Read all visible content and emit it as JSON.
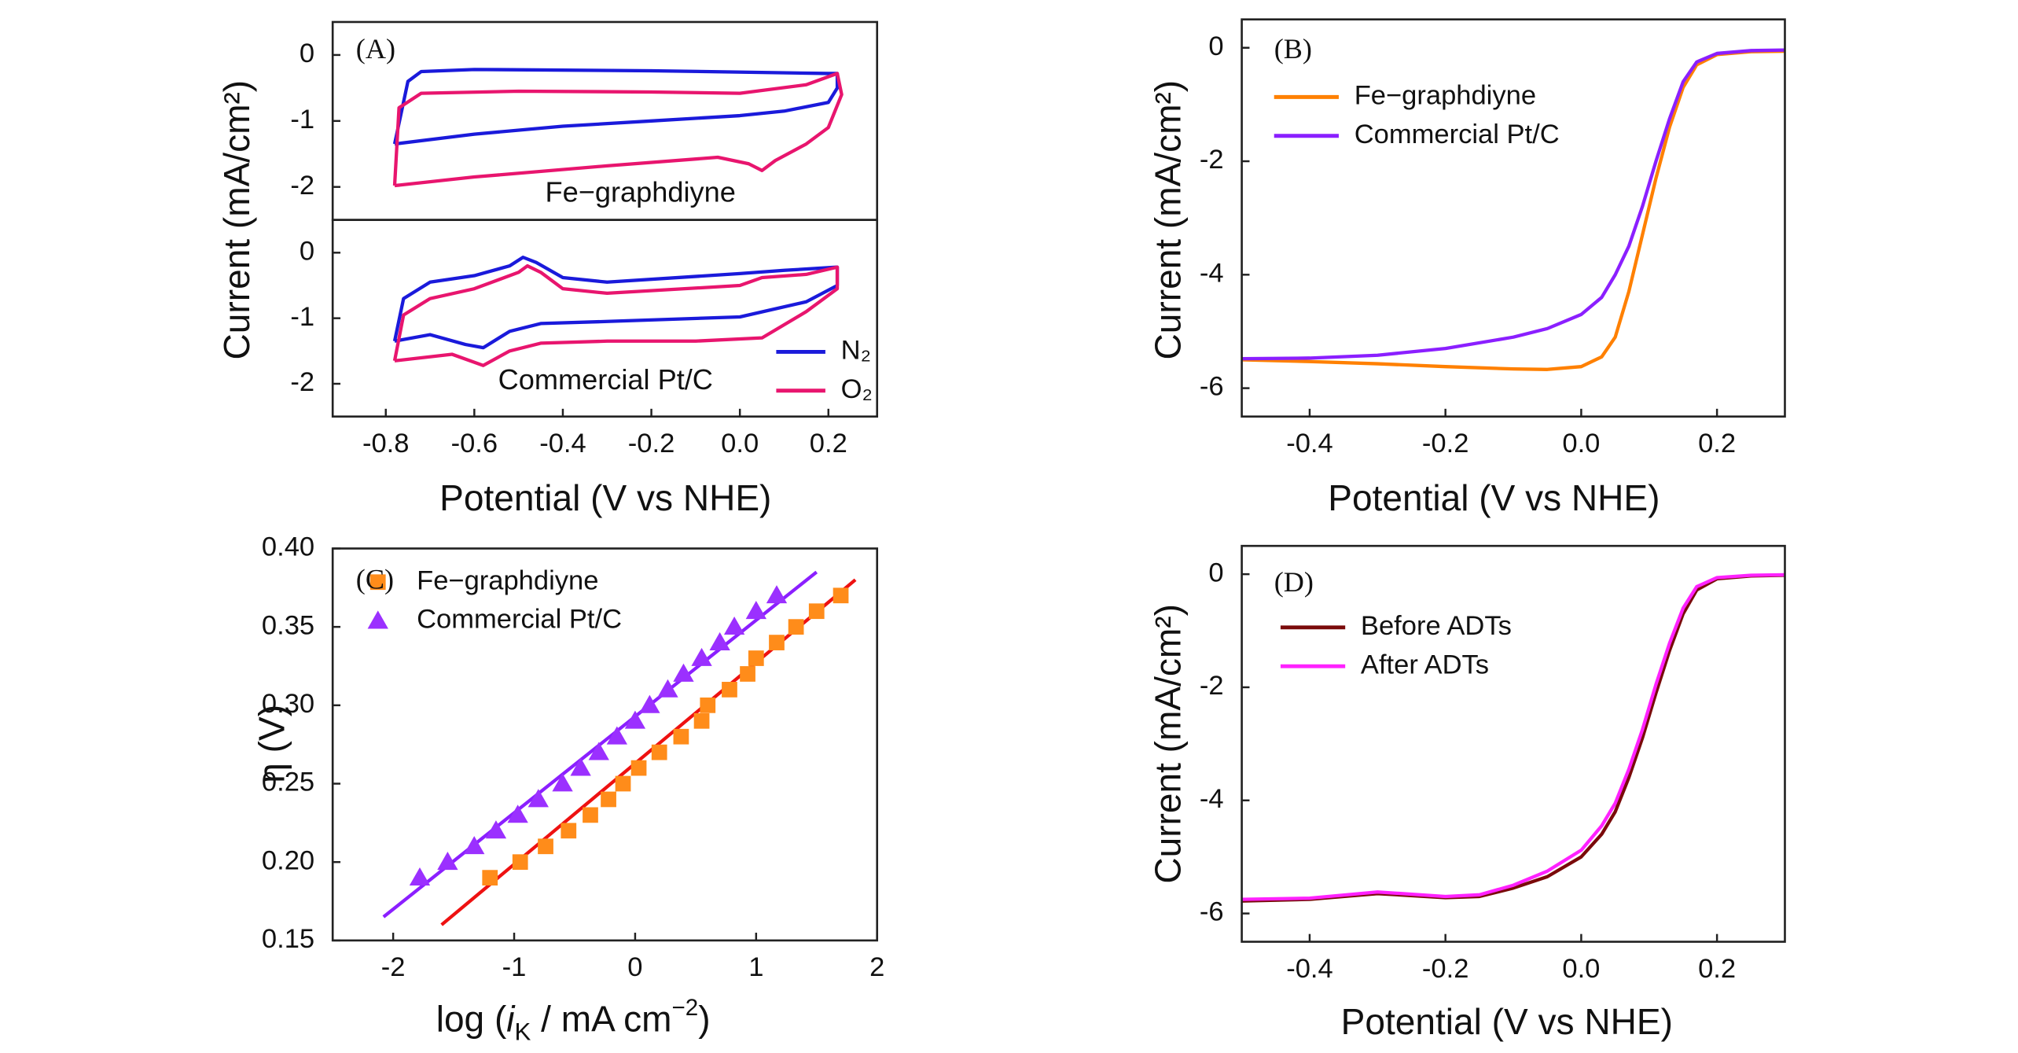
{
  "chart_data": [
    {
      "type": "line",
      "panel_label": "(A)",
      "annotation": "Fe−graphdiyne",
      "ylabel": "Current (mA/cm²)",
      "xlim": [
        -0.92,
        0.31
      ],
      "ylim": [
        -2.5,
        0.5
      ],
      "yticks": [
        0,
        -1,
        -2
      ],
      "series": [
        {
          "color": "#1a1adb",
          "x": [
            -0.78,
            -0.75,
            -0.72,
            -0.6,
            -0.2,
            0.2,
            0.22,
            0.22,
            0.2,
            0.1,
            0.0,
            -0.2,
            -0.4,
            -0.6,
            -0.78
          ],
          "values": [
            -1.35,
            -0.4,
            -0.25,
            -0.22,
            -0.24,
            -0.28,
            -0.28,
            -0.5,
            -0.72,
            -0.85,
            -0.92,
            -1.0,
            -1.08,
            -1.2,
            -1.35
          ]
        },
        {
          "color": "#e8156e",
          "x": [
            -0.78,
            -0.77,
            -0.72,
            -0.5,
            -0.2,
            0.0,
            0.15,
            0.22,
            0.23,
            0.2,
            0.15,
            0.08,
            0.05,
            0.02,
            -0.05,
            -0.3,
            -0.6,
            -0.78
          ],
          "values": [
            -1.98,
            -0.8,
            -0.58,
            -0.55,
            -0.56,
            -0.58,
            -0.45,
            -0.28,
            -0.6,
            -1.1,
            -1.35,
            -1.6,
            -1.75,
            -1.65,
            -1.55,
            -1.68,
            -1.85,
            -1.98
          ]
        }
      ]
    },
    {
      "type": "line",
      "annotation": "Commercial Pt/C",
      "xlabel": "Potential (V vs NHE)",
      "xlim": [
        -0.92,
        0.31
      ],
      "ylim": [
        -2.5,
        0.5
      ],
      "yticks": [
        0,
        -1,
        -2
      ],
      "xticks": [
        -0.8,
        -0.6,
        -0.4,
        -0.2,
        {
          "value": 0,
          "label": "0.0"
        },
        0.2
      ],
      "legend": "lower right",
      "series": [
        {
          "name": "N₂",
          "color": "#1a1adb",
          "x": [
            -0.78,
            -0.76,
            -0.7,
            -0.6,
            -0.52,
            -0.49,
            -0.46,
            -0.4,
            -0.3,
            0.0,
            0.1,
            0.22,
            0.22,
            0.15,
            0.0,
            -0.3,
            -0.45,
            -0.52,
            -0.58,
            -0.62,
            -0.7,
            -0.78
          ],
          "values": [
            -1.35,
            -0.7,
            -0.45,
            -0.35,
            -0.2,
            -0.07,
            -0.15,
            -0.38,
            -0.45,
            -0.32,
            -0.27,
            -0.22,
            -0.5,
            -0.75,
            -0.98,
            -1.05,
            -1.08,
            -1.2,
            -1.45,
            -1.4,
            -1.25,
            -1.35
          ]
        },
        {
          "name": "O₂",
          "color": "#e8156e",
          "x": [
            -0.78,
            -0.76,
            -0.7,
            -0.6,
            -0.5,
            -0.48,
            -0.45,
            -0.4,
            -0.3,
            0.0,
            0.05,
            0.15,
            0.22,
            0.22,
            0.15,
            0.05,
            -0.1,
            -0.3,
            -0.45,
            -0.52,
            -0.58,
            -0.65,
            -0.78
          ],
          "values": [
            -1.65,
            -0.95,
            -0.7,
            -0.55,
            -0.3,
            -0.2,
            -0.3,
            -0.55,
            -0.62,
            -0.5,
            -0.38,
            -0.33,
            -0.22,
            -0.55,
            -0.9,
            -1.3,
            -1.35,
            -1.35,
            -1.38,
            -1.5,
            -1.72,
            -1.55,
            -1.65
          ]
        }
      ]
    },
    {
      "type": "line",
      "panel_label": "(B)",
      "xlabel": "Potential (V vs NHE)",
      "ylabel": "Current (mA/cm²)",
      "xlim": [
        -0.5,
        0.3
      ],
      "ylim": [
        -6.5,
        0.5
      ],
      "yticks": [
        0,
        -2,
        -4,
        -6
      ],
      "xticks": [
        -0.4,
        -0.2,
        {
          "value": 0,
          "label": "0.0"
        },
        0.2
      ],
      "legend": "upper left",
      "x": [
        -0.5,
        -0.4,
        -0.3,
        -0.2,
        -0.1,
        -0.05,
        0.0,
        0.03,
        0.05,
        0.07,
        0.09,
        0.11,
        0.13,
        0.15,
        0.17,
        0.2,
        0.25,
        0.3
      ],
      "series": [
        {
          "name": "Fe−graphdiyne",
          "color": "#ff8000",
          "values": [
            -5.5,
            -5.53,
            -5.57,
            -5.62,
            -5.66,
            -5.67,
            -5.62,
            -5.45,
            -5.1,
            -4.3,
            -3.3,
            -2.3,
            -1.4,
            -0.7,
            -0.3,
            -0.12,
            -0.07,
            -0.06
          ]
        },
        {
          "name": "Commercial Pt/C",
          "color": "#8b1fff",
          "values": [
            -5.48,
            -5.47,
            -5.42,
            -5.3,
            -5.1,
            -4.95,
            -4.7,
            -4.4,
            -4.0,
            -3.5,
            -2.8,
            -2.0,
            -1.25,
            -0.6,
            -0.25,
            -0.1,
            -0.05,
            -0.04
          ]
        }
      ]
    },
    {
      "type": "scatter",
      "panel_label": "(C)",
      "xlabel_parts": [
        "log (",
        "i",
        "K",
        " / mA cm",
        "−2",
        ")"
      ],
      "ylabel": "η (V)",
      "xlim": [
        -2.5,
        2.0
      ],
      "ylim": [
        0.15,
        0.4
      ],
      "xticks": [
        -2,
        -1,
        0,
        1,
        2
      ],
      "yticks": [
        0.15,
        {
          "value": 0.2,
          "label": "0.20"
        },
        0.25,
        {
          "value": 0.3,
          "label": "0.30"
        },
        0.35,
        {
          "value": 0.4,
          "label": "0.40"
        }
      ],
      "legend": "upper left",
      "series": [
        {
          "name": "Fe−graphdiyne",
          "color": "#ff8c1a",
          "marker": "square",
          "x": [
            -1.2,
            -0.95,
            -0.74,
            -0.55,
            -0.37,
            -0.22,
            -0.1,
            0.03,
            0.2,
            0.38,
            0.55,
            0.6,
            0.78,
            0.93,
            1.0,
            1.17,
            1.33,
            1.5,
            1.7
          ],
          "values": [
            0.19,
            0.2,
            0.21,
            0.22,
            0.23,
            0.24,
            0.25,
            0.26,
            0.27,
            0.28,
            0.29,
            0.3,
            0.31,
            0.32,
            0.33,
            0.34,
            0.35,
            0.36,
            0.37
          ]
        },
        {
          "name": "Commercial Pt/C",
          "color": "#9b30ff",
          "marker": "triangle",
          "x": [
            -1.78,
            -1.55,
            -1.33,
            -1.15,
            -0.97,
            -0.8,
            -0.6,
            -0.45,
            -0.3,
            -0.15,
            0.0,
            0.12,
            0.27,
            0.4,
            0.55,
            0.7,
            0.82,
            1.0,
            1.17
          ],
          "values": [
            0.19,
            0.2,
            0.21,
            0.22,
            0.23,
            0.24,
            0.25,
            0.26,
            0.27,
            0.28,
            0.29,
            0.3,
            0.31,
            0.32,
            0.33,
            0.34,
            0.35,
            0.36,
            0.37
          ]
        }
      ],
      "fit_lines": [
        {
          "color": "#ee1111",
          "x": [
            -1.6,
            1.82
          ],
          "values": [
            0.16,
            0.38
          ]
        },
        {
          "color": "#8b1fff",
          "x": [
            -2.08,
            1.5
          ],
          "values": [
            0.165,
            0.385
          ]
        }
      ]
    },
    {
      "type": "line",
      "panel_label": "(D)",
      "xlabel": "Potential (V vs NHE)",
      "ylabel": "Current (mA/cm²)",
      "xlim": [
        -0.5,
        0.3
      ],
      "ylim": [
        -6.5,
        0.5
      ],
      "yticks": [
        0,
        -2,
        -4,
        -6
      ],
      "xticks": [
        -0.4,
        -0.2,
        {
          "value": 0,
          "label": "0.0"
        },
        0.2
      ],
      "legend": "upper left",
      "x": [
        -0.5,
        -0.4,
        -0.3,
        -0.2,
        -0.15,
        -0.1,
        -0.05,
        0.0,
        0.03,
        0.05,
        0.07,
        0.09,
        0.11,
        0.13,
        0.15,
        0.17,
        0.2,
        0.25,
        0.3
      ],
      "series": [
        {
          "name": "Before ADTs",
          "color": "#7a0a0a",
          "values": [
            -5.78,
            -5.75,
            -5.65,
            -5.72,
            -5.7,
            -5.55,
            -5.35,
            -5.0,
            -4.6,
            -4.2,
            -3.6,
            -2.9,
            -2.1,
            -1.35,
            -0.7,
            -0.28,
            -0.08,
            -0.03,
            -0.02
          ]
        },
        {
          "name": "After ADTs",
          "color": "#ff22ff",
          "values": [
            -5.75,
            -5.73,
            -5.62,
            -5.7,
            -5.67,
            -5.5,
            -5.25,
            -4.88,
            -4.45,
            -4.05,
            -3.45,
            -2.75,
            -1.95,
            -1.22,
            -0.6,
            -0.22,
            -0.06,
            -0.02,
            -0.01
          ]
        }
      ]
    }
  ]
}
